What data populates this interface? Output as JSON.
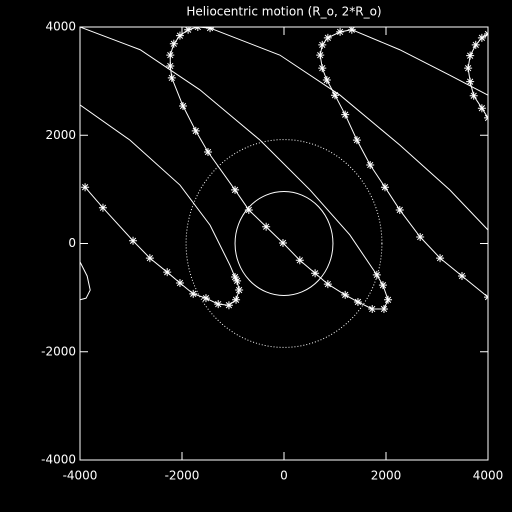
{
  "chart_data": {
    "type": "line",
    "title": "Heliocentric motion (R_o, 2*R_o)",
    "xlim": [
      -4000,
      4000
    ],
    "ylim": [
      -4000,
      4000
    ],
    "xticks": [
      -4000,
      -2000,
      0,
      2000,
      4000
    ],
    "yticks": [
      -4000,
      -2000,
      0,
      2000,
      4000
    ],
    "color": "#ffffff",
    "background": "#000000",
    "circles": [
      {
        "radius": 960,
        "style": "solid"
      },
      {
        "radius": 1920,
        "style": "dotted"
      }
    ],
    "series": [
      {
        "marker": "none",
        "x": [
          -4000,
          -3020,
          -2040,
          -1450,
          -1060,
          -960
        ],
        "values": [
          2560,
          1910,
          1080,
          340,
          -400,
          -620
        ]
      },
      {
        "marker": "asterisk",
        "x": [
          -3900,
          -3550,
          -2960,
          -2630,
          -2290,
          -2040,
          -1780,
          -1530,
          -1290,
          -1080,
          -940,
          -880,
          -920,
          -960
        ],
        "values": [
          1040,
          660,
          50,
          -270,
          -530,
          -730,
          -930,
          -1010,
          -1120,
          -1140,
          -1040,
          -860,
          -690,
          -620
        ]
      },
      {
        "marker": "none",
        "x": [
          -4000,
          -2820,
          -1650,
          -470,
          510,
          1290,
          1820
        ],
        "values": [
          4000,
          3580,
          2840,
          1910,
          990,
          160,
          -580
        ]
      },
      {
        "marker": "asterisk",
        "x": [
          -1450,
          -1690,
          -1880,
          -2040,
          -2160,
          -2230,
          -2230,
          -2200,
          -1980,
          -1730,
          -1490,
          -960,
          -690,
          -350,
          -20,
          310,
          610,
          860,
          1200,
          1450,
          1730,
          1960,
          2040,
          1940,
          1820
        ],
        "values": [
          3980,
          4000,
          3950,
          3840,
          3690,
          3480,
          3280,
          3060,
          2540,
          2080,
          1690,
          990,
          620,
          310,
          10,
          -310,
          -550,
          -750,
          -950,
          -1080,
          -1210,
          -1210,
          -1040,
          -770,
          -580
        ]
      },
      {
        "marker": "none",
        "x": [
          -1450,
          -80,
          1100,
          2270,
          3250,
          4000
        ],
        "values": [
          3980,
          3480,
          2740,
          1820,
          990,
          250
        ]
      },
      {
        "marker": "asterisk",
        "x": [
          1330,
          1100,
          860,
          750,
          710,
          750,
          840,
          1000,
          1200,
          1430,
          1690,
          1980,
          2270,
          2670,
          3060,
          3490,
          4000
        ],
        "values": [
          3950,
          3910,
          3800,
          3670,
          3480,
          3240,
          3020,
          2740,
          2380,
          1910,
          1450,
          1040,
          620,
          120,
          -270,
          -600,
          -990
        ]
      },
      {
        "marker": "none",
        "x": [
          1330,
          2270,
          3250,
          4000
        ],
        "values": [
          3950,
          3580,
          3110,
          2740
        ]
      },
      {
        "marker": "asterisk",
        "x": [
          4000,
          3880,
          3720,
          3650,
          3610,
          3650,
          3760,
          3880,
          4000
        ],
        "values": [
          2320,
          2500,
          2730,
          2990,
          3240,
          3470,
          3670,
          3800,
          3870
        ]
      },
      {
        "marker": "none",
        "x": [
          -4000,
          -3860,
          -3800,
          -3880,
          -4000
        ],
        "values": [
          -340,
          -600,
          -860,
          -1010,
          -1040
        ]
      }
    ]
  }
}
